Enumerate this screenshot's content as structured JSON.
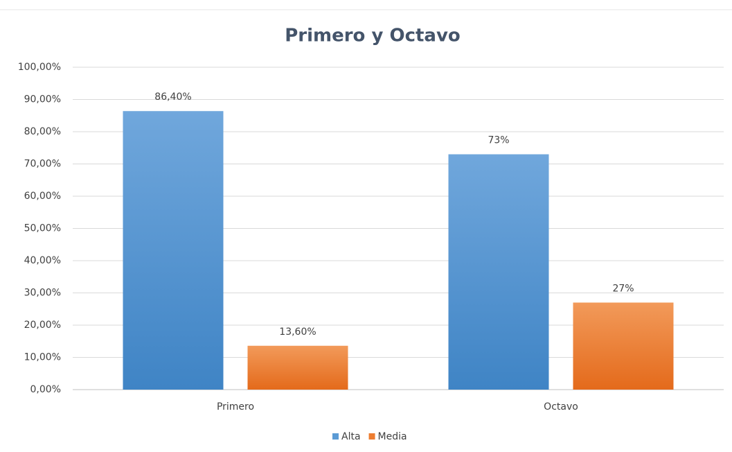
{
  "chart_data": {
    "type": "bar",
    "title": "Primero y Octavo",
    "categories": [
      "Primero",
      "Octavo"
    ],
    "series": [
      {
        "name": "Alta",
        "color": "#5b9bd5",
        "values": [
          86.4,
          73
        ],
        "value_labels": [
          "86,40%",
          "73%"
        ]
      },
      {
        "name": "Media",
        "color": "#ed7d31",
        "values": [
          13.6,
          27
        ],
        "value_labels": [
          "13,60%",
          "27%"
        ]
      }
    ],
    "ylim": [
      0,
      100
    ],
    "yticks": [
      {
        "value": 0,
        "label": "0,00%"
      },
      {
        "value": 10,
        "label": "10,00%"
      },
      {
        "value": 20,
        "label": "20,00%"
      },
      {
        "value": 30,
        "label": "30,00%"
      },
      {
        "value": 40,
        "label": "40,00%"
      },
      {
        "value": 50,
        "label": "50,00%"
      },
      {
        "value": 60,
        "label": "60,00%"
      },
      {
        "value": 70,
        "label": "70,00%"
      },
      {
        "value": 80,
        "label": "80,00%"
      },
      {
        "value": 90,
        "label": "90,00%"
      },
      {
        "value": 100,
        "label": "100,00%"
      }
    ],
    "grid": true,
    "legend": "bottom"
  }
}
